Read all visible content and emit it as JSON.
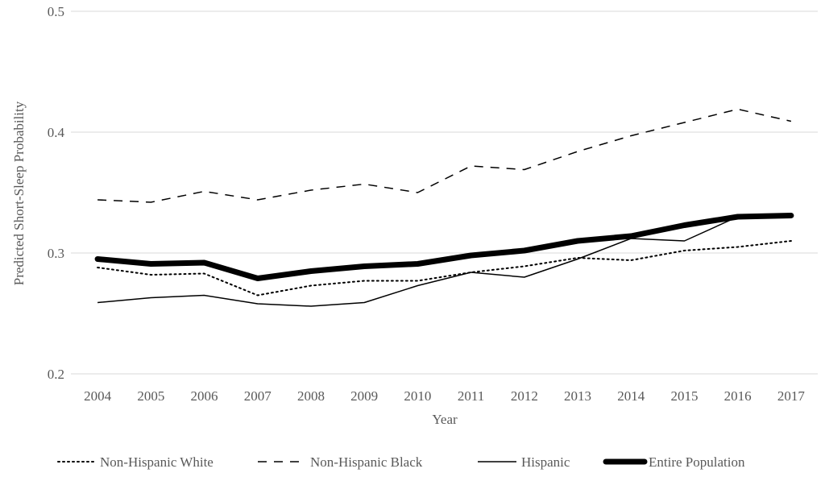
{
  "chart_data": {
    "type": "line",
    "title": "",
    "xlabel": "Year",
    "ylabel": "Predicted Short-Sleep Probability",
    "x": [
      "2004",
      "2005",
      "2006",
      "2007",
      "2008",
      "2009",
      "2010",
      "2011",
      "2012",
      "2013",
      "2014",
      "2015",
      "2016",
      "2017"
    ],
    "ylim": [
      0.2,
      0.5
    ],
    "yticks": [
      "0.2",
      "0.3",
      "0.4",
      "0.5"
    ],
    "grid": true,
    "legend_position": "bottom",
    "series": [
      {
        "name": "Non-Hispanic White",
        "style": "dotted",
        "color": "#000000",
        "values": [
          0.288,
          0.282,
          0.283,
          0.265,
          0.273,
          0.277,
          0.277,
          0.284,
          0.289,
          0.296,
          0.294,
          0.302,
          0.305,
          0.31
        ]
      },
      {
        "name": "Non-Hispanic Black",
        "style": "dashed",
        "color": "#000000",
        "values": [
          0.344,
          0.342,
          0.351,
          0.344,
          0.352,
          0.357,
          0.35,
          0.372,
          0.369,
          0.384,
          0.397,
          0.408,
          0.419,
          0.409
        ]
      },
      {
        "name": "Hispanic",
        "style": "solid",
        "color": "#000000",
        "values": [
          0.259,
          0.263,
          0.265,
          0.258,
          0.256,
          0.259,
          0.273,
          0.284,
          0.28,
          0.295,
          0.312,
          0.31,
          0.33,
          0.331
        ]
      },
      {
        "name": "Entire Population",
        "style": "thick",
        "color": "#000000",
        "values": [
          0.295,
          0.291,
          0.292,
          0.279,
          0.285,
          0.289,
          0.291,
          0.298,
          0.302,
          0.31,
          0.314,
          0.323,
          0.33,
          0.331
        ]
      }
    ]
  }
}
